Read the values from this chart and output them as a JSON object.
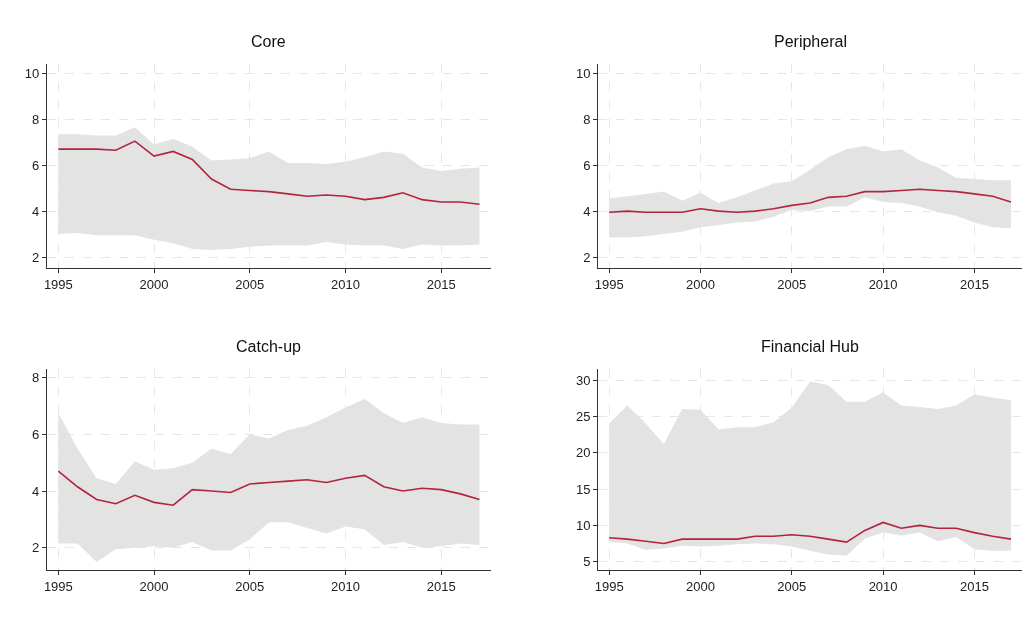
{
  "chart_data": [
    {
      "type": "line",
      "title": "Core",
      "x": [
        1995,
        1996,
        1997,
        1998,
        1999,
        2000,
        2001,
        2002,
        2003,
        2004,
        2005,
        2006,
        2007,
        2008,
        2009,
        2010,
        2011,
        2012,
        2013,
        2014,
        2015,
        2016,
        2017
      ],
      "xlim": [
        1994.4,
        2017.6
      ],
      "xticks": [
        1995,
        2000,
        2005,
        2010,
        2015
      ],
      "ylim": [
        1.5,
        10.4
      ],
      "yticks": [
        2,
        4,
        6,
        8,
        10
      ],
      "grid": true,
      "series": [
        {
          "color": "#b3243f",
          "values": [
            6.7,
            6.7,
            6.7,
            6.65,
            7.05,
            6.4,
            6.6,
            6.25,
            5.4,
            4.95,
            4.9,
            4.85,
            4.75,
            4.65,
            4.7,
            4.65,
            4.5,
            4.6,
            4.8,
            4.5,
            4.4,
            4.4,
            4.3
          ],
          "upper": [
            7.35,
            7.35,
            7.3,
            7.3,
            7.65,
            6.9,
            7.15,
            6.8,
            6.2,
            6.25,
            6.3,
            6.6,
            6.1,
            6.1,
            6.05,
            6.15,
            6.35,
            6.6,
            6.5,
            5.9,
            5.75,
            5.85,
            5.9
          ],
          "lower": [
            3.0,
            3.05,
            2.95,
            2.95,
            2.95,
            2.75,
            2.6,
            2.35,
            2.3,
            2.35,
            2.45,
            2.5,
            2.5,
            2.5,
            2.65,
            2.55,
            2.5,
            2.5,
            2.35,
            2.55,
            2.5,
            2.5,
            2.55
          ]
        }
      ]
    },
    {
      "type": "line",
      "title": "Peripheral",
      "x": [
        1995,
        1996,
        1997,
        1998,
        1999,
        2000,
        2001,
        2002,
        2003,
        2004,
        2005,
        2006,
        2007,
        2008,
        2009,
        2010,
        2011,
        2012,
        2013,
        2014,
        2015,
        2016,
        2017
      ],
      "xlim": [
        1994.4,
        2017.6
      ],
      "xticks": [
        1995,
        2000,
        2005,
        2010,
        2015
      ],
      "ylim": [
        1.5,
        10.4
      ],
      "yticks": [
        2,
        4,
        6,
        8,
        10
      ],
      "grid": true,
      "series": [
        {
          "color": "#b3243f",
          "values": [
            3.95,
            4.0,
            3.95,
            3.95,
            3.95,
            4.1,
            4.0,
            3.95,
            4.0,
            4.1,
            4.25,
            4.35,
            4.6,
            4.65,
            4.85,
            4.85,
            4.9,
            4.95,
            4.9,
            4.85,
            4.75,
            4.65,
            4.4
          ],
          "upper": [
            4.55,
            4.65,
            4.75,
            4.85,
            4.45,
            4.8,
            4.35,
            4.6,
            4.9,
            5.2,
            5.3,
            5.8,
            6.35,
            6.7,
            6.85,
            6.6,
            6.7,
            6.2,
            5.9,
            5.45,
            5.4,
            5.35,
            5.35
          ],
          "lower": [
            2.85,
            2.85,
            2.9,
            3.0,
            3.1,
            3.3,
            3.4,
            3.5,
            3.55,
            3.75,
            4.05,
            4.0,
            4.2,
            4.2,
            4.6,
            4.4,
            4.35,
            4.2,
            3.95,
            3.8,
            3.5,
            3.3,
            3.25
          ]
        }
      ]
    },
    {
      "type": "line",
      "title": "Catch-up",
      "x": [
        1995,
        1996,
        1997,
        1998,
        1999,
        2000,
        2001,
        2002,
        2003,
        2004,
        2005,
        2006,
        2007,
        2008,
        2009,
        2010,
        2011,
        2012,
        2013,
        2014,
        2015,
        2016,
        2017
      ],
      "xlim": [
        1994.4,
        2017.6
      ],
      "xticks": [
        1995,
        2000,
        2005,
        2010,
        2015
      ],
      "ylim": [
        1.2,
        8.3
      ],
      "yticks": [
        2,
        4,
        6,
        8
      ],
      "grid": true,
      "series": [
        {
          "color": "#b3243f",
          "values": [
            4.7,
            4.15,
            3.7,
            3.55,
            3.85,
            3.6,
            3.5,
            4.05,
            4.0,
            3.95,
            4.25,
            4.3,
            4.35,
            4.4,
            4.3,
            4.45,
            4.55,
            4.15,
            4.0,
            4.1,
            4.05,
            3.9,
            3.7
          ],
          "upper": [
            6.75,
            5.5,
            4.45,
            4.25,
            5.05,
            4.75,
            4.8,
            5.0,
            5.5,
            5.3,
            6.0,
            5.85,
            6.15,
            6.3,
            6.6,
            6.95,
            7.25,
            6.75,
            6.4,
            6.6,
            6.4,
            6.35,
            6.35
          ],
          "lower": [
            2.15,
            2.15,
            1.5,
            1.95,
            2.0,
            2.05,
            2.0,
            2.2,
            1.9,
            1.9,
            2.3,
            2.9,
            2.9,
            2.7,
            2.5,
            2.75,
            2.65,
            2.1,
            2.2,
            2.0,
            2.05,
            2.15,
            2.1
          ]
        }
      ]
    },
    {
      "type": "line",
      "title": "Financial Hub",
      "x": [
        1995,
        1996,
        1997,
        1998,
        1999,
        2000,
        2001,
        2002,
        2003,
        2004,
        2005,
        2006,
        2007,
        2008,
        2009,
        2010,
        2011,
        2012,
        2013,
        2014,
        2015,
        2016,
        2017
      ],
      "xlim": [
        1994.4,
        2017.6
      ],
      "xticks": [
        1995,
        2000,
        2005,
        2010,
        2015
      ],
      "ylim": [
        3.8,
        31.5
      ],
      "yticks": [
        5,
        10,
        15,
        20,
        25,
        30
      ],
      "grid": true,
      "series": [
        {
          "color": "#b3243f",
          "values": [
            8.3,
            8.1,
            7.8,
            7.5,
            8.1,
            8.1,
            8.1,
            8.1,
            8.5,
            8.5,
            8.7,
            8.5,
            8.1,
            7.7,
            9.3,
            10.4,
            9.6,
            10.0,
            9.6,
            9.6,
            9.0,
            8.5,
            8.1
          ],
          "upper": [
            24,
            26.5,
            24,
            21.2,
            26,
            25.9,
            23.2,
            23.5,
            23.5,
            24.2,
            26.2,
            29.8,
            29.3,
            27,
            27,
            28.3,
            26.5,
            26.3,
            26,
            26.5,
            28,
            27.6,
            27.2
          ],
          "lower": [
            7.7,
            7.5,
            6.6,
            6.8,
            7.2,
            7.1,
            7.2,
            7.4,
            7.5,
            7.4,
            7.1,
            6.5,
            6.0,
            5.8,
            8.2,
            9.0,
            8.6,
            9.0,
            7.8,
            8.4,
            6.7,
            6.5,
            6.5
          ]
        }
      ]
    }
  ]
}
